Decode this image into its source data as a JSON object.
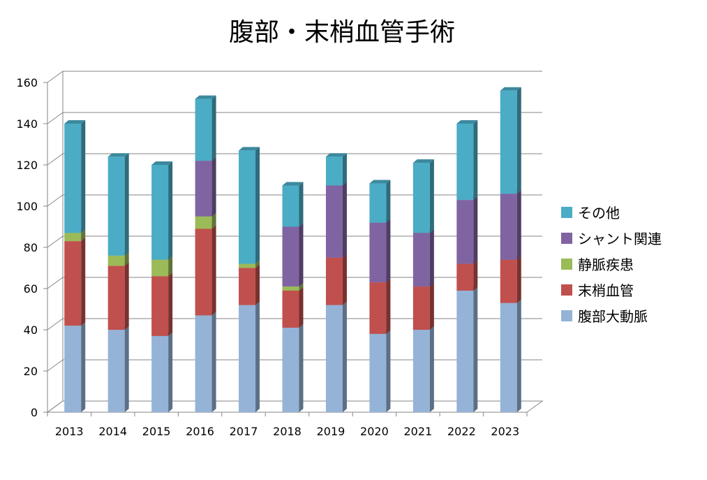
{
  "chart_data": {
    "type": "bar",
    "stacked": true,
    "three_d": true,
    "title": "腹部・末梢血管手術",
    "xlabel": "",
    "ylabel": "",
    "ylim": [
      0,
      160
    ],
    "y_ticks": [
      "0",
      "20",
      "40",
      "60",
      "80",
      "100",
      "120",
      "140",
      "160"
    ],
    "grid": true,
    "legend_position": "right",
    "categories": [
      "2013",
      "2014",
      "2015",
      "2016",
      "2017",
      "2018",
      "2019",
      "2020",
      "2021",
      "2022",
      "2023"
    ],
    "series": [
      {
        "name": "腹部大動脈",
        "color": "#95B3D7",
        "values": [
          42,
          40,
          37,
          47,
          52,
          41,
          52,
          38,
          40,
          59,
          53
        ]
      },
      {
        "name": "末梢血管",
        "color": "#C0504D",
        "values": [
          41,
          31,
          29,
          42,
          18,
          18,
          23,
          25,
          21,
          13,
          21
        ]
      },
      {
        "name": "静脈疾患",
        "color": "#9BBB59",
        "values": [
          4,
          5,
          8,
          6,
          2,
          2,
          0,
          0,
          0,
          0,
          0
        ]
      },
      {
        "name": "シャント関連",
        "color": "#8064A2",
        "values": [
          0,
          0,
          0,
          27,
          0,
          29,
          35,
          29,
          26,
          31,
          32
        ]
      },
      {
        "name": "その他",
        "color": "#4BACC6",
        "values": [
          53,
          48,
          46,
          30,
          55,
          20,
          14,
          19,
          34,
          37,
          50
        ]
      }
    ]
  }
}
